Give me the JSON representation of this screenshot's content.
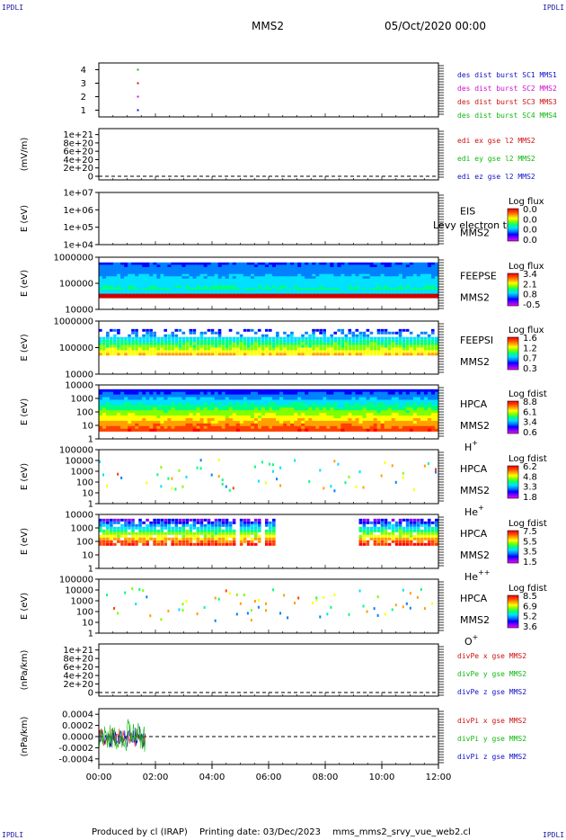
{
  "corner_label": "IPDLI",
  "header": {
    "spacecraft": "MMS2",
    "date": "05/Oct/2020 00:00"
  },
  "footer": {
    "produced_by": "Produced by cl (IRAP)",
    "printing_date": "Printing date: 03/Dec/2023",
    "script_name": "mms_mms2_srvy_vue_web2.cl"
  },
  "colors": {
    "blue": "#1010c8",
    "magenta": "#d010d0",
    "red": "#d01010",
    "green": "#10b810",
    "colorbar": [
      "#ff00ff",
      "#8000ff",
      "#0000ff",
      "#0080ff",
      "#00e0ff",
      "#00ff80",
      "#80ff00",
      "#ffff00",
      "#ffa000",
      "#ff4000",
      "#ff0000"
    ]
  },
  "chart_data": [
    {
      "type": "scatter",
      "panel": "burst",
      "ylim": [
        0.5,
        4.5
      ],
      "yticks": [
        "1",
        "2",
        "3",
        "4"
      ],
      "legend": [
        {
          "text": "des dist burst SC1 MMS1",
          "color": "#1010c8"
        },
        {
          "text": "des dist burst SC2 MMS2",
          "color": "#d010d0"
        },
        {
          "text": "des dist burst SC3 MMS3",
          "color": "#d01010"
        },
        {
          "text": "des dist burst SC4 MMS4",
          "color": "#10b810"
        }
      ],
      "series": [
        {
          "values": [
            [
              1.35,
              1
            ]
          ],
          "color": "#1010c8"
        },
        {
          "values": [
            [
              1.35,
              2
            ]
          ],
          "color": "#d010d0"
        },
        {
          "values": [
            [
              1.35,
              3
            ]
          ],
          "color": "#d01010"
        },
        {
          "values": [
            [
              1.35,
              4
            ]
          ],
          "color": "#10b810"
        }
      ]
    },
    {
      "type": "line",
      "panel": "edi",
      "ylabel": "(mV/m)",
      "ylim": [
        0,
        1.1e+21
      ],
      "yticks": [
        "0",
        "2e+20",
        "4e+20",
        "6e+20",
        "8e+20",
        "1e+21"
      ],
      "legend": [
        {
          "text": "edi ex gse l2 MMS2",
          "color": "#d01010"
        },
        {
          "text": "edi ey gse l2 MMS2",
          "color": "#10b810"
        },
        {
          "text": "edi ez gse l2 MMS2",
          "color": "#1010c8"
        }
      ],
      "dashed_zero": true
    },
    {
      "type": "heatmap",
      "panel": "eis",
      "ylabel": "E (eV)",
      "yticks": [
        "1e+04",
        "1e+05",
        "1e+06",
        "1e+07"
      ],
      "ylog": true,
      "labels": [
        "EIS",
        "MMS2"
      ],
      "overlay_text": "Levy electron to",
      "colorbar_title": "Log flux",
      "colorbar_ticks": [
        "0.0",
        "0.0",
        "0.0",
        "0.0"
      ]
    },
    {
      "type": "heatmap",
      "panel": "feepse",
      "ylabel": "E (eV)",
      "yticks": [
        "10000",
        "100000",
        "1000000"
      ],
      "ylog": true,
      "labels": [
        "FEEPSE",
        "MMS2"
      ],
      "colorbar_title": "Log flux",
      "colorbar_ticks": [
        "3.4",
        "2.1",
        "0.8",
        "-0.5"
      ]
    },
    {
      "type": "heatmap",
      "panel": "feepsi",
      "ylabel": "E (eV)",
      "yticks": [
        "10000",
        "100000",
        "1000000"
      ],
      "ylog": true,
      "labels": [
        "FEEPSI",
        "MMS2"
      ],
      "colorbar_title": "Log flux",
      "colorbar_ticks": [
        "1.6",
        "1.2",
        "0.7",
        "0.3"
      ]
    },
    {
      "type": "heatmap",
      "panel": "hpca_h",
      "ylabel": "E (eV)",
      "yticks": [
        "1",
        "10",
        "100",
        "1000",
        "10000"
      ],
      "ylog": true,
      "labels": [
        "HPCA",
        "MMS2"
      ],
      "species": "H",
      "charge": "+",
      "colorbar_title": "Log fdist",
      "colorbar_ticks": [
        "8.8",
        "6.1",
        "3.4",
        "0.6"
      ]
    },
    {
      "type": "heatmap",
      "panel": "hpca_he",
      "ylabel": "E (eV)",
      "yticks": [
        "1",
        "10",
        "100",
        "1000",
        "10000",
        "100000"
      ],
      "ylog": true,
      "labels": [
        "HPCA",
        "MMS2"
      ],
      "species": "He",
      "charge": "+",
      "colorbar_title": "Log fdist",
      "colorbar_ticks": [
        "6.2",
        "4.8",
        "3.3",
        "1.8"
      ]
    },
    {
      "type": "heatmap",
      "panel": "hpca_hepp",
      "ylabel": "E (eV)",
      "yticks": [
        "1",
        "10",
        "100",
        "1000",
        "10000"
      ],
      "ylog": true,
      "labels": [
        "HPCA",
        "MMS2"
      ],
      "species": "He",
      "charge": "++",
      "colorbar_title": "Log fdist",
      "colorbar_ticks": [
        "7.5",
        "5.5",
        "3.5",
        "1.5"
      ]
    },
    {
      "type": "heatmap",
      "panel": "hpca_o",
      "ylabel": "E (eV)",
      "yticks": [
        "1",
        "10",
        "100",
        "1000",
        "10000",
        "100000"
      ],
      "ylog": true,
      "labels": [
        "HPCA",
        "MMS2"
      ],
      "species": "O",
      "charge": "+",
      "colorbar_title": "Log fdist",
      "colorbar_ticks": [
        "8.5",
        "6.9",
        "5.2",
        "3.6"
      ]
    },
    {
      "type": "line",
      "panel": "divpe",
      "ylabel": "(nPa/km)",
      "ylim": [
        0,
        1.1e+21
      ],
      "yticks": [
        "0",
        "2e+20",
        "4e+20",
        "6e+20",
        "8e+20",
        "1e+21"
      ],
      "legend": [
        {
          "text": "divPe x gse MMS2",
          "color": "#d01010"
        },
        {
          "text": "divPe y gse MMS2",
          "color": "#10b810"
        },
        {
          "text": "divPe z gse MMS2",
          "color": "#1010c8"
        }
      ],
      "dashed_zero": true
    },
    {
      "type": "line",
      "panel": "divpi",
      "ylabel": "(nPa/km)",
      "ylim": [
        -0.0005,
        0.0005
      ],
      "yticks": [
        "-0.0004",
        "-0.0002",
        "0.0000",
        "0.0002",
        "0.0004"
      ],
      "legend": [
        {
          "text": "divPi x gse MMS2",
          "color": "#d01010"
        },
        {
          "text": "divPi y gse MMS2",
          "color": "#10b810"
        },
        {
          "text": "divPi z gse MMS2",
          "color": "#1010c8"
        }
      ],
      "data_span_hours": [
        0.0,
        1.9
      ],
      "dashed_zero": true
    }
  ],
  "x_axis": {
    "ticks": [
      "00:00",
      "02:00",
      "04:00",
      "06:00",
      "08:00",
      "10:00",
      "12:00"
    ],
    "xlim_hours": [
      0,
      12
    ]
  }
}
